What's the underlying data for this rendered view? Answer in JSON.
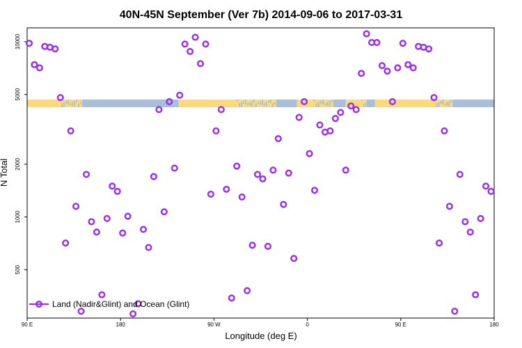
{
  "chart_data": {
    "type": "scatter",
    "title": "40N-45N September (Ver 7b)   2014-09-06 to 2017-03-31",
    "xlabel": "Longitude (deg E)",
    "ylabel": "N Total",
    "x_scale": "longitude (90 E to 180, wrapping past 360)",
    "y_scale": "log",
    "xlim": [
      90,
      540
    ],
    "ylim": [
      265,
      12000
    ],
    "x_ticks": [
      {
        "value": 90,
        "label": "90 E"
      },
      {
        "value": 180,
        "label": "180"
      },
      {
        "value": 270,
        "label": "90 W"
      },
      {
        "value": 360,
        "label": "0"
      },
      {
        "value": 450,
        "label": "90 E"
      },
      {
        "value": 540,
        "label": "180"
      }
    ],
    "y_ticks": [
      {
        "value": 500,
        "label": "500"
      },
      {
        "value": 1000,
        "label": "1000"
      },
      {
        "value": 2000,
        "label": "2000"
      },
      {
        "value": 5000,
        "label": "5000"
      },
      {
        "value": 10000,
        "label": "10000"
      }
    ],
    "land_ocean_band": {
      "land_color": "#fdd979",
      "ocean_color": "#a8bfdc",
      "segments": [
        {
          "x0": 90,
          "x1": 121,
          "type": "land"
        },
        {
          "x0": 121,
          "x1": 143,
          "type": "mixed"
        },
        {
          "x0": 143,
          "x1": 236,
          "type": "ocean"
        },
        {
          "x0": 236,
          "x1": 292,
          "type": "land"
        },
        {
          "x0": 292,
          "x1": 330,
          "type": "mixed"
        },
        {
          "x0": 330,
          "x1": 350,
          "type": "ocean"
        },
        {
          "x0": 350,
          "x1": 366,
          "type": "land"
        },
        {
          "x0": 366,
          "x1": 385,
          "type": "mixed"
        },
        {
          "x0": 385,
          "x1": 397,
          "type": "ocean"
        },
        {
          "x0": 397,
          "x1": 412,
          "type": "land"
        },
        {
          "x0": 412,
          "x1": 417,
          "type": "mixed"
        },
        {
          "x0": 417,
          "x1": 425,
          "type": "ocean"
        },
        {
          "x0": 425,
          "x1": 482,
          "type": "land"
        },
        {
          "x0": 482,
          "x1": 500,
          "type": "mixed"
        },
        {
          "x0": 500,
          "x1": 540,
          "type": "ocean"
        }
      ]
    },
    "legend": {
      "label": "Land (Nadir&Glint) and Ocean (Glint)",
      "position": "bottom-left"
    },
    "series": [
      {
        "name": "Land (Nadir&Glint) and Ocean (Glint)",
        "color": "#9b30f0",
        "marker": "open-circle",
        "points": [
          {
            "x": 92,
            "y": 9800
          },
          {
            "x": 97,
            "y": 7400
          },
          {
            "x": 102,
            "y": 7100
          },
          {
            "x": 107,
            "y": 9400
          },
          {
            "x": 112,
            "y": 9300
          },
          {
            "x": 117,
            "y": 9100
          },
          {
            "x": 122,
            "y": 4800
          },
          {
            "x": 127,
            "y": 710
          },
          {
            "x": 132,
            "y": 3100
          },
          {
            "x": 137,
            "y": 1150
          },
          {
            "x": 142,
            "y": 290
          },
          {
            "x": 147,
            "y": 1750
          },
          {
            "x": 152,
            "y": 940
          },
          {
            "x": 157,
            "y": 820
          },
          {
            "x": 162,
            "y": 360
          },
          {
            "x": 167,
            "y": 980
          },
          {
            "x": 172,
            "y": 1500
          },
          {
            "x": 177,
            "y": 1400
          },
          {
            "x": 182,
            "y": 810
          },
          {
            "x": 187,
            "y": 1010
          },
          {
            "x": 192,
            "y": 280
          },
          {
            "x": 197,
            "y": 320
          },
          {
            "x": 202,
            "y": 850
          },
          {
            "x": 207,
            "y": 670
          },
          {
            "x": 212,
            "y": 1700
          },
          {
            "x": 217,
            "y": 4100
          },
          {
            "x": 222,
            "y": 1070
          },
          {
            "x": 227,
            "y": 4550
          },
          {
            "x": 232,
            "y": 1900
          },
          {
            "x": 237,
            "y": 4950
          },
          {
            "x": 242,
            "y": 9700
          },
          {
            "x": 247,
            "y": 8800
          },
          {
            "x": 252,
            "y": 10600
          },
          {
            "x": 257,
            "y": 7500
          },
          {
            "x": 262,
            "y": 9700
          },
          {
            "x": 267,
            "y": 1350
          },
          {
            "x": 272,
            "y": 3100
          },
          {
            "x": 277,
            "y": 4100
          },
          {
            "x": 282,
            "y": 1440
          },
          {
            "x": 287,
            "y": 345
          },
          {
            "x": 292,
            "y": 1950
          },
          {
            "x": 297,
            "y": 1300
          },
          {
            "x": 302,
            "y": 380
          },
          {
            "x": 307,
            "y": 690
          },
          {
            "x": 312,
            "y": 1750
          },
          {
            "x": 317,
            "y": 1650
          },
          {
            "x": 322,
            "y": 680
          },
          {
            "x": 327,
            "y": 1850
          },
          {
            "x": 332,
            "y": 2800
          },
          {
            "x": 337,
            "y": 1180
          },
          {
            "x": 342,
            "y": 1780
          },
          {
            "x": 347,
            "y": 580
          },
          {
            "x": 352,
            "y": 3700
          },
          {
            "x": 357,
            "y": 4550
          },
          {
            "x": 362,
            "y": 2300
          },
          {
            "x": 367,
            "y": 1420
          },
          {
            "x": 372,
            "y": 3350
          },
          {
            "x": 377,
            "y": 3050
          },
          {
            "x": 382,
            "y": 3100
          },
          {
            "x": 387,
            "y": 3650
          },
          {
            "x": 392,
            "y": 3950
          },
          {
            "x": 397,
            "y": 1850
          },
          {
            "x": 402,
            "y": 4300
          },
          {
            "x": 407,
            "y": 4100
          },
          {
            "x": 412,
            "y": 6600
          },
          {
            "x": 417,
            "y": 11100
          },
          {
            "x": 422,
            "y": 9900
          },
          {
            "x": 427,
            "y": 9900
          },
          {
            "x": 432,
            "y": 7300
          },
          {
            "x": 437,
            "y": 6800
          },
          {
            "x": 442,
            "y": 4550
          },
          {
            "x": 447,
            "y": 7100
          },
          {
            "x": 452,
            "y": 9800
          },
          {
            "x": 457,
            "y": 7400
          },
          {
            "x": 462,
            "y": 7100
          },
          {
            "x": 467,
            "y": 9400
          },
          {
            "x": 472,
            "y": 9300
          },
          {
            "x": 477,
            "y": 9100
          },
          {
            "x": 482,
            "y": 4800
          },
          {
            "x": 487,
            "y": 710
          },
          {
            "x": 492,
            "y": 3100
          },
          {
            "x": 497,
            "y": 1150
          },
          {
            "x": 502,
            "y": 290
          },
          {
            "x": 507,
            "y": 1750
          },
          {
            "x": 512,
            "y": 940
          },
          {
            "x": 517,
            "y": 820
          },
          {
            "x": 522,
            "y": 360
          },
          {
            "x": 527,
            "y": 980
          },
          {
            "x": 532,
            "y": 1500
          },
          {
            "x": 537,
            "y": 1400
          }
        ]
      }
    ]
  }
}
